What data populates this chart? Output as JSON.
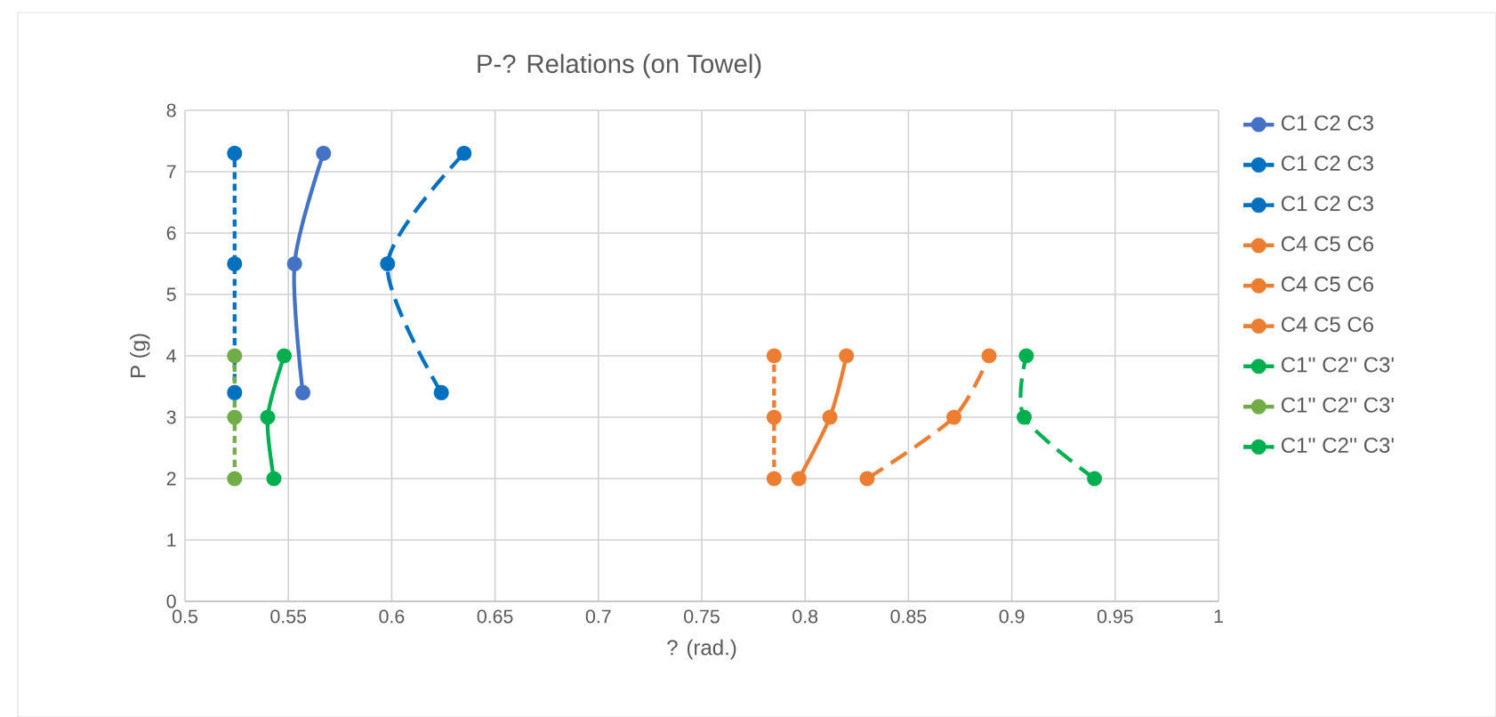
{
  "chart_data": {
    "type": "line",
    "title": "P-? Relations (on Towel)",
    "xlabel": "? (rad.)",
    "ylabel": "P (g)",
    "xlim": [
      0.5,
      1
    ],
    "xticks": [
      0.5,
      0.55,
      0.6,
      0.65,
      0.7,
      0.75,
      0.8,
      0.85,
      0.9,
      0.95,
      1
    ],
    "ylim": [
      0,
      8
    ],
    "yticks": [
      0,
      1,
      2,
      3,
      4,
      5,
      6,
      7,
      8
    ],
    "grid": true,
    "legend": "right",
    "marker": "circle",
    "series": [
      {
        "name": "C1 C2 C3",
        "color": "#4472c4",
        "line_style": "solid",
        "x": [
          0.557,
          0.553,
          0.567
        ],
        "values": [
          3.4,
          5.5,
          7.3
        ]
      },
      {
        "name": "C1 C2 C3",
        "color": "#0070c0",
        "line_style": "dotted",
        "x": [
          0.524,
          0.524,
          0.524
        ],
        "values": [
          3.4,
          5.5,
          7.3
        ]
      },
      {
        "name": "C1 C2 C3",
        "color": "#0070c0",
        "line_style": "dashed",
        "x": [
          0.624,
          0.598,
          0.635
        ],
        "values": [
          3.4,
          5.5,
          7.3
        ]
      },
      {
        "name": "C4 C5 C6",
        "color": "#ed7d31",
        "line_style": "solid",
        "x": [
          0.797,
          0.812,
          0.82
        ],
        "values": [
          2,
          3,
          4
        ]
      },
      {
        "name": "C4 C5 C6",
        "color": "#ed7d31",
        "line_style": "dotted",
        "x": [
          0.785,
          0.785,
          0.785
        ],
        "values": [
          2,
          3,
          4
        ]
      },
      {
        "name": "C4 C5 C6",
        "color": "#ed7d31",
        "line_style": "dashed",
        "x": [
          0.83,
          0.872,
          0.889
        ],
        "values": [
          2,
          3,
          4
        ]
      },
      {
        "name": "C1'' C2'' C3'",
        "color": "#00b050",
        "line_style": "solid",
        "x": [
          0.543,
          0.54,
          0.548
        ],
        "values": [
          2,
          3,
          4
        ]
      },
      {
        "name": "C1'' C2'' C3'",
        "color": "#70ad47",
        "line_style": "dotted",
        "x": [
          0.524,
          0.524,
          0.524
        ],
        "values": [
          2,
          3,
          4
        ]
      },
      {
        "name": "C1'' C2'' C3'",
        "color": "#00b050",
        "line_style": "dashed",
        "x": [
          0.94,
          0.906,
          0.907
        ],
        "values": [
          2,
          3,
          4
        ]
      }
    ]
  }
}
